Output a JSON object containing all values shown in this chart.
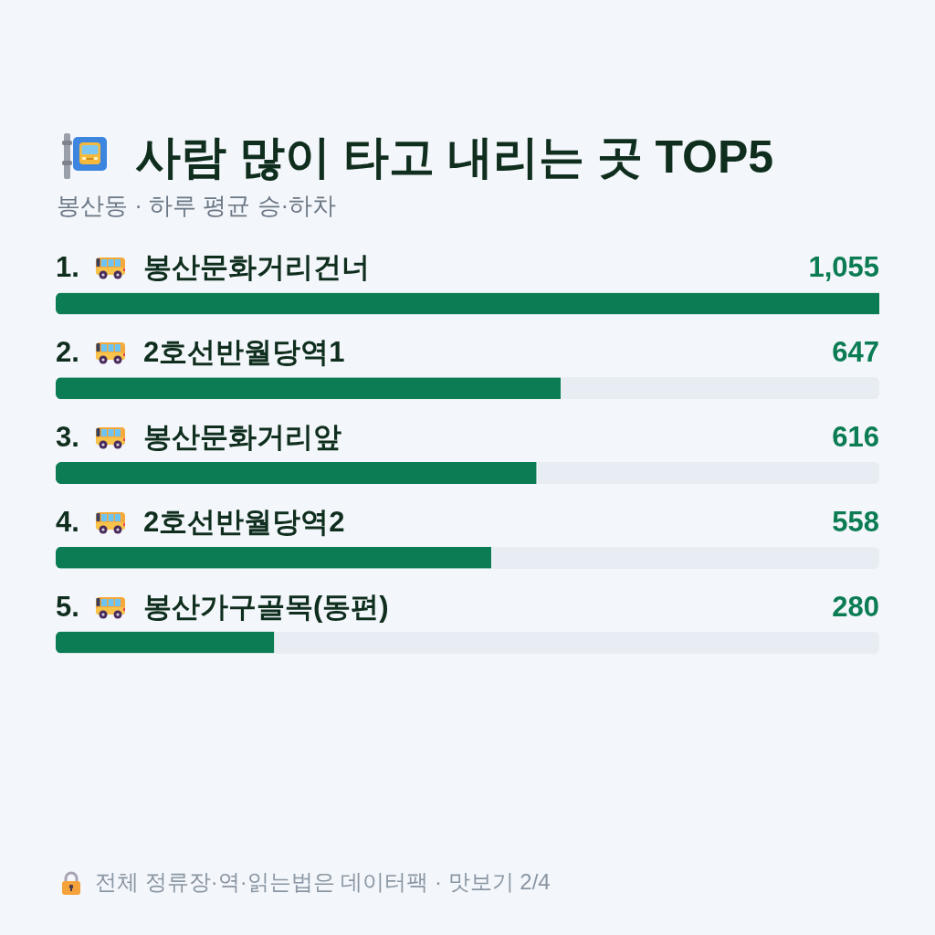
{
  "chart_data": {
    "type": "bar",
    "orientation": "horizontal",
    "title": "사람 많이 타고 내리는 곳 TOP5",
    "subtitle": "봉산동 · 하루 평균 승·하차",
    "categories": [
      "1. 봉산문화거리건너",
      "2. 2호선반월당역1",
      "3. 봉산문화거리앞",
      "4. 2호선반월당역2",
      "5. 봉산가구골목(동편)"
    ],
    "values": [
      1055,
      647,
      616,
      558,
      280
    ],
    "value_labels": [
      "1,055",
      "647",
      "616",
      "558",
      "280"
    ],
    "color": "#0b7c53",
    "annotations": [
      "전체 정류장·역·읽는법은 데이터팩 · 맛보기 2/4"
    ]
  }
}
